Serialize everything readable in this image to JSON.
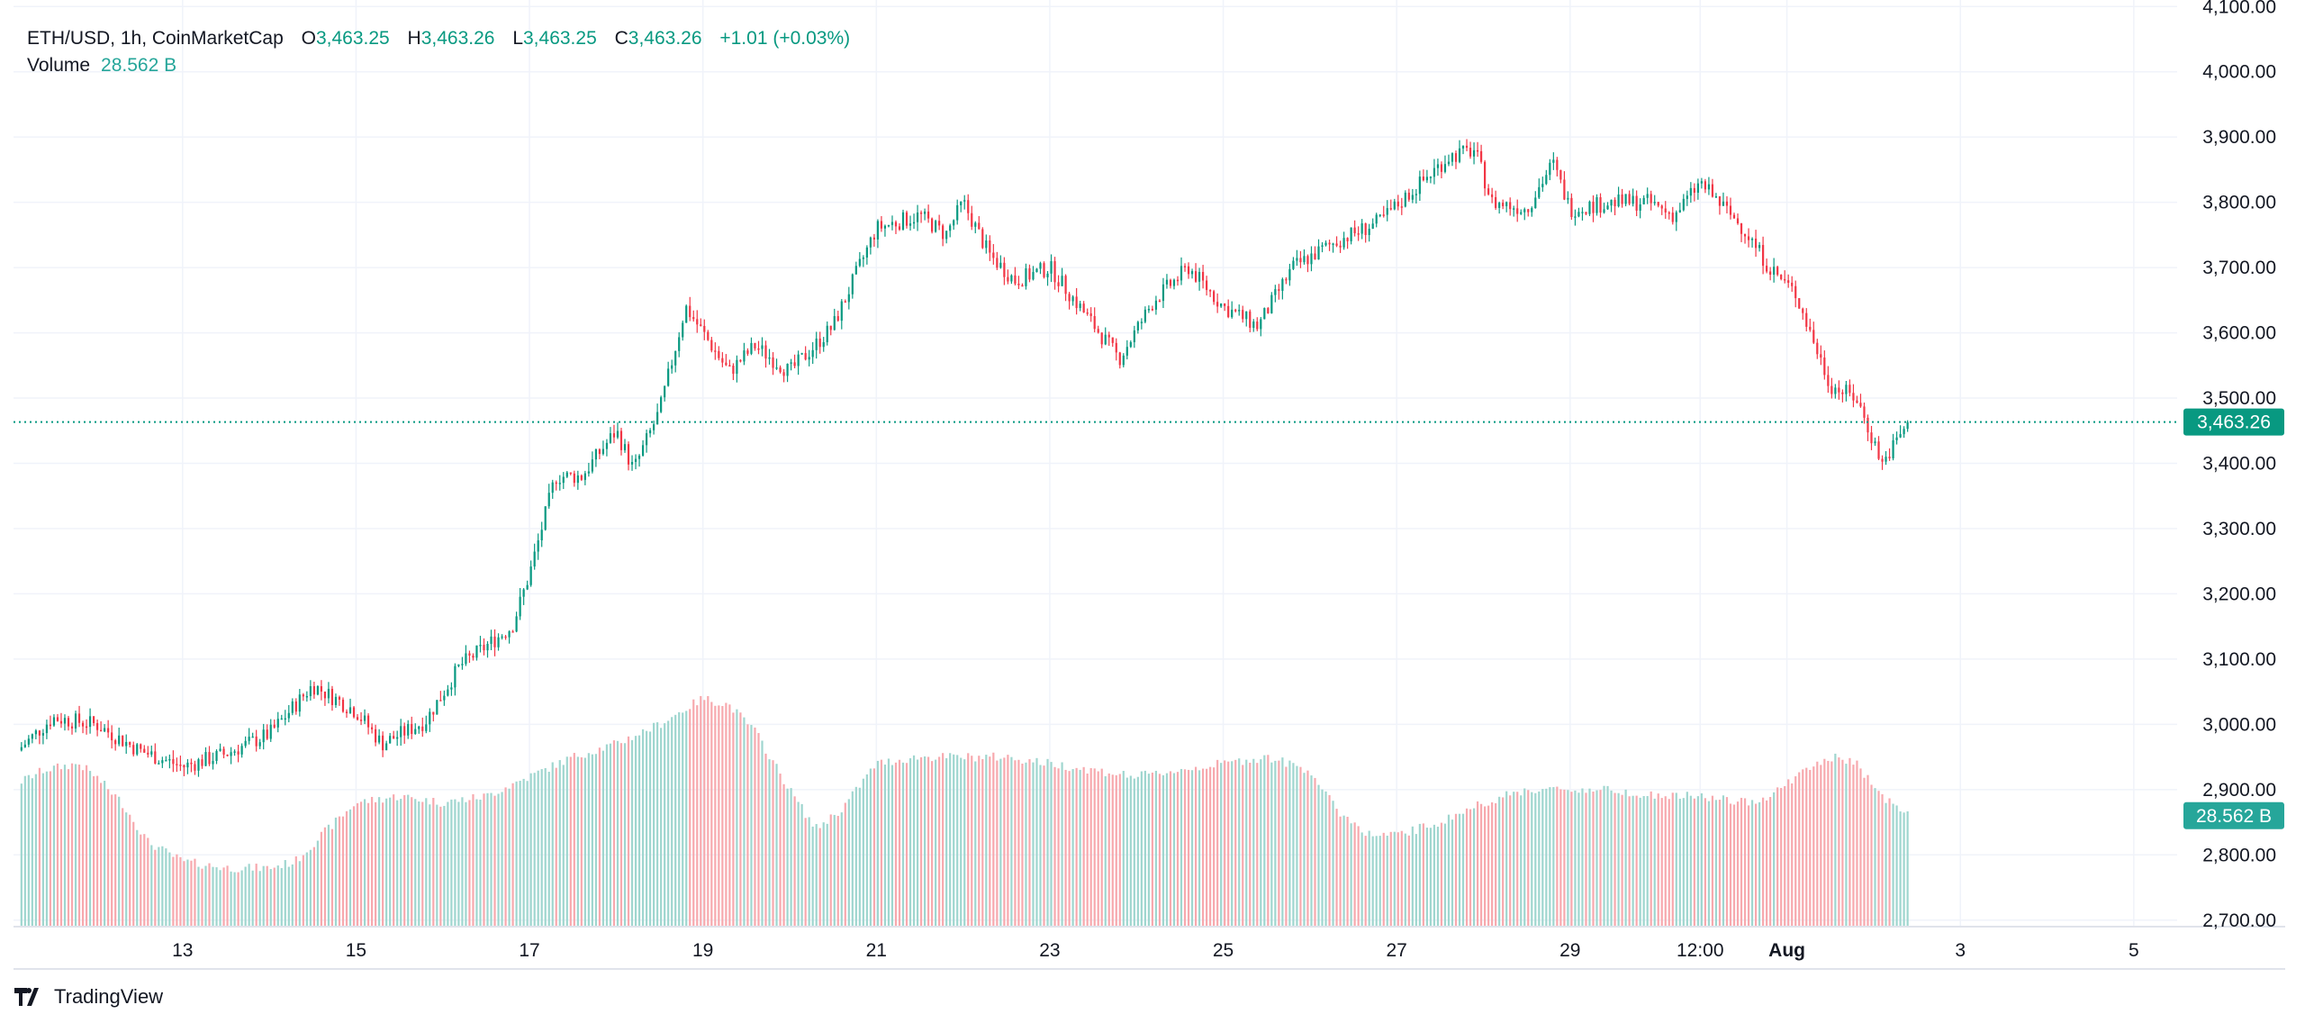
{
  "header": {
    "symbol": "ETH/USD, 1h, CoinMarketCap",
    "open_label": "O",
    "open": "3,463.25",
    "high_label": "H",
    "high": "3,463.26",
    "low_label": "L",
    "low": "3,463.25",
    "close_label": "C",
    "close": "3,463.26",
    "change": "+1.01 (+0.03%)"
  },
  "volume": {
    "label": "Volume",
    "value": "28.562 B"
  },
  "brand": {
    "name": "TradingView"
  },
  "colors": {
    "up": "#089981",
    "down": "#f23645",
    "vol_up": "#9fd6cf",
    "vol_down": "#f7a9ae",
    "grid": "#f0f3fa",
    "text": "#131722"
  },
  "chart_data": {
    "type": "candlestick",
    "title": "ETH/USD, 1h, CoinMarketCap",
    "ylim": [
      2690,
      4110
    ],
    "y_ticks": [
      "2,700.00",
      "2,800.00",
      "2,900.00",
      "3,000.00",
      "3,100.00",
      "3,200.00",
      "3,300.00",
      "3,400.00",
      "3,500.00",
      "3,600.00",
      "3,700.00",
      "3,800.00",
      "3,900.00",
      "4,000.00",
      "4,100.00"
    ],
    "y_tick_values": [
      2700,
      2800,
      2900,
      3000,
      3100,
      3200,
      3300,
      3400,
      3500,
      3600,
      3700,
      3800,
      3900,
      4000,
      4100
    ],
    "x_ticks": [
      "13",
      "15",
      "17",
      "19",
      "21",
      "23",
      "25",
      "27",
      "29",
      "12:00",
      "Aug",
      "3",
      "5"
    ],
    "x_tick_days": [
      1.0,
      3.0,
      5.0,
      7.0,
      9.0,
      11.0,
      13.0,
      15.0,
      17.0,
      18.5,
      19.5,
      21.5,
      23.5
    ],
    "x_range_days": [
      -0.95,
      24.0
    ],
    "last_day": 20.9,
    "last_price": 3463.26,
    "last_price_label": "3,463.26",
    "volume_label": "28.562 B",
    "price_keypoints": [
      [
        -0.9,
        2960
      ],
      [
        -0.5,
        3010
      ],
      [
        0.0,
        3000
      ],
      [
        0.5,
        2960
      ],
      [
        1.0,
        2935
      ],
      [
        1.5,
        2955
      ],
      [
        2.0,
        2985
      ],
      [
        2.5,
        3060
      ],
      [
        3.0,
        3020
      ],
      [
        3.3,
        2970
      ],
      [
        3.8,
        3005
      ],
      [
        4.2,
        3090
      ],
      [
        4.8,
        3150
      ],
      [
        5.0,
        3230
      ],
      [
        5.3,
        3380
      ],
      [
        5.6,
        3380
      ],
      [
        6.0,
        3450
      ],
      [
        6.2,
        3390
      ],
      [
        6.5,
        3480
      ],
      [
        6.8,
        3640
      ],
      [
        7.0,
        3600
      ],
      [
        7.3,
        3540
      ],
      [
        7.6,
        3580
      ],
      [
        8.0,
        3540
      ],
      [
        8.5,
        3610
      ],
      [
        9.0,
        3760
      ],
      [
        9.5,
        3780
      ],
      [
        9.8,
        3750
      ],
      [
        10.0,
        3800
      ],
      [
        10.3,
        3720
      ],
      [
        10.6,
        3680
      ],
      [
        11.0,
        3700
      ],
      [
        11.4,
        3630
      ],
      [
        11.8,
        3560
      ],
      [
        12.2,
        3650
      ],
      [
        12.6,
        3700
      ],
      [
        13.0,
        3640
      ],
      [
        13.4,
        3610
      ],
      [
        13.8,
        3700
      ],
      [
        14.3,
        3740
      ],
      [
        14.8,
        3770
      ],
      [
        15.2,
        3820
      ],
      [
        15.6,
        3870
      ],
      [
        15.9,
        3880
      ],
      [
        16.1,
        3800
      ],
      [
        16.5,
        3790
      ],
      [
        16.8,
        3860
      ],
      [
        17.0,
        3790
      ],
      [
        17.5,
        3800
      ],
      [
        17.9,
        3800
      ],
      [
        18.2,
        3780
      ],
      [
        18.5,
        3830
      ],
      [
        19.0,
        3760
      ],
      [
        19.3,
        3700
      ],
      [
        19.6,
        3660
      ],
      [
        20.0,
        3520
      ],
      [
        20.3,
        3500
      ],
      [
        20.6,
        3400
      ],
      [
        20.9,
        3463
      ]
    ],
    "volume_keypoints": [
      [
        -0.9,
        2910
      ],
      [
        -0.6,
        2930
      ],
      [
        -0.2,
        2940
      ],
      [
        0.0,
        2920
      ],
      [
        0.3,
        2880
      ],
      [
        0.6,
        2820
      ],
      [
        1.0,
        2790
      ],
      [
        1.5,
        2780
      ],
      [
        2.0,
        2780
      ],
      [
        2.3,
        2790
      ],
      [
        2.6,
        2830
      ],
      [
        3.0,
        2880
      ],
      [
        3.5,
        2890
      ],
      [
        4.0,
        2880
      ],
      [
        4.5,
        2890
      ],
      [
        5.0,
        2920
      ],
      [
        5.5,
        2950
      ],
      [
        6.0,
        2970
      ],
      [
        6.5,
        3000
      ],
      [
        7.0,
        3040
      ],
      [
        7.3,
        3030
      ],
      [
        7.6,
        2990
      ],
      [
        8.0,
        2900
      ],
      [
        8.3,
        2840
      ],
      [
        8.6,
        2870
      ],
      [
        9.0,
        2940
      ],
      [
        9.5,
        2950
      ],
      [
        10.0,
        2950
      ],
      [
        10.5,
        2950
      ],
      [
        11.0,
        2940
      ],
      [
        11.5,
        2930
      ],
      [
        12.0,
        2920
      ],
      [
        12.5,
        2930
      ],
      [
        13.0,
        2940
      ],
      [
        13.5,
        2950
      ],
      [
        14.0,
        2930
      ],
      [
        14.3,
        2870
      ],
      [
        14.7,
        2830
      ],
      [
        15.0,
        2830
      ],
      [
        15.5,
        2850
      ],
      [
        16.0,
        2880
      ],
      [
        16.5,
        2900
      ],
      [
        17.0,
        2900
      ],
      [
        17.5,
        2900
      ],
      [
        18.0,
        2890
      ],
      [
        18.5,
        2890
      ],
      [
        19.0,
        2880
      ],
      [
        19.3,
        2890
      ],
      [
        19.6,
        2920
      ],
      [
        20.0,
        2950
      ],
      [
        20.3,
        2940
      ],
      [
        20.6,
        2890
      ],
      [
        20.9,
        2860
      ]
    ]
  }
}
